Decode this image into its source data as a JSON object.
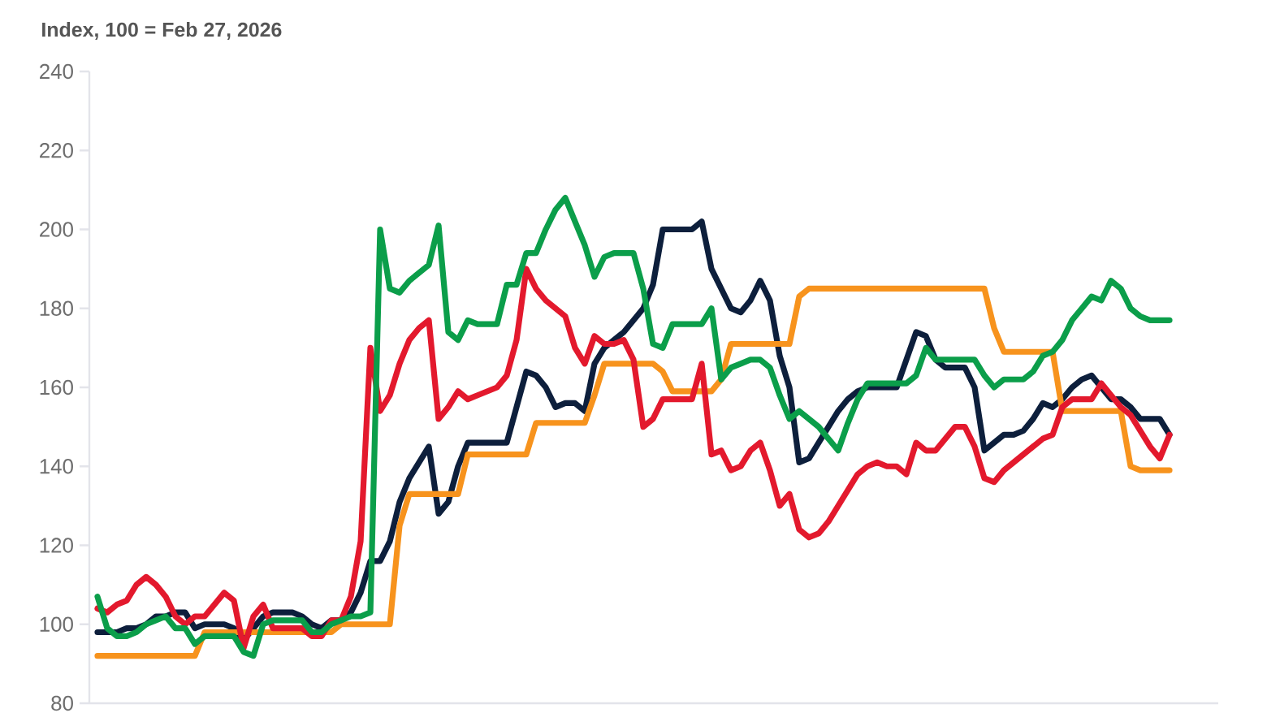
{
  "chart_data": {
    "type": "line",
    "title": "Index, 100 = Feb 27, 2026",
    "categories": [
      null,
      null,
      null,
      null,
      null,
      null,
      null,
      null,
      null,
      null,
      null,
      null,
      null,
      null,
      null,
      null,
      null,
      null,
      null,
      null,
      null,
      null,
      null,
      null,
      null,
      null,
      null,
      null,
      null,
      null,
      null,
      null,
      null,
      null,
      null,
      null,
      null,
      null,
      null,
      null,
      null,
      null,
      null,
      null,
      null,
      null,
      null,
      null,
      null,
      null,
      null,
      null,
      null,
      null,
      null,
      null,
      null,
      null,
      null,
      null,
      null,
      null,
      null,
      null,
      null,
      null,
      null,
      null,
      null,
      null,
      null,
      null,
      null,
      null,
      null,
      null,
      null,
      null,
      null,
      null,
      null,
      null,
      null,
      null,
      null,
      null,
      null,
      null,
      null,
      null,
      null,
      null,
      null,
      null,
      null,
      null,
      null,
      null,
      null,
      null,
      null,
      null,
      null,
      null,
      null,
      null,
      null,
      null,
      null,
      null,
      null
    ],
    "ylim": [
      80,
      240
    ],
    "yticks": [
      80,
      100,
      120,
      140,
      160,
      180,
      200,
      220,
      240
    ],
    "tick_labels": "y",
    "series": [
      {
        "color": "#0d1f3c",
        "values": [
          98,
          98,
          98,
          99,
          99,
          100,
          102,
          102,
          103,
          103,
          99,
          100,
          100,
          100,
          99,
          96,
          99,
          102,
          103,
          103,
          103,
          102,
          100,
          99,
          101,
          101,
          103,
          108,
          116,
          116,
          121,
          131,
          137,
          141,
          145,
          128,
          131,
          140,
          146,
          146,
          146,
          146,
          146,
          155,
          164,
          163,
          160,
          155,
          156,
          156,
          154,
          166,
          170,
          172,
          174,
          177,
          180,
          186,
          200,
          200,
          200,
          200,
          202,
          190,
          185,
          180,
          179,
          182,
          187,
          182,
          168,
          160,
          141,
          142,
          146,
          150,
          154,
          157,
          159,
          160,
          160,
          160,
          160,
          167,
          174,
          173,
          167,
          165,
          165,
          165,
          160,
          144,
          146,
          148,
          148,
          149,
          152,
          156,
          155,
          157,
          160,
          162,
          163,
          160,
          157,
          157,
          155,
          152,
          152,
          152,
          148
        ]
      },
      {
        "color": "#f7931d",
        "values": [
          92,
          92,
          92,
          92,
          92,
          92,
          92,
          92,
          92,
          92,
          92,
          98,
          98,
          98,
          98,
          98,
          98,
          98,
          98,
          98,
          98,
          98,
          98,
          98,
          98,
          100,
          100,
          100,
          100,
          100,
          100,
          125,
          133,
          133,
          133,
          133,
          133,
          133,
          143,
          143,
          143,
          143,
          143,
          143,
          143,
          151,
          151,
          151,
          151,
          151,
          151,
          158,
          166,
          166,
          166,
          166,
          166,
          166,
          164,
          159,
          159,
          159,
          159,
          159,
          162,
          171,
          171,
          171,
          171,
          171,
          171,
          171,
          183,
          185,
          185,
          185,
          185,
          185,
          185,
          185,
          185,
          185,
          185,
          185,
          185,
          185,
          185,
          185,
          185,
          185,
          185,
          185,
          175,
          169,
          169,
          169,
          169,
          169,
          169,
          154,
          154,
          154,
          154,
          154,
          154,
          154,
          140,
          139,
          139,
          139,
          139
        ]
      },
      {
        "color": "#e3192d",
        "values": [
          104,
          103,
          105,
          106,
          110,
          112,
          110,
          107,
          102,
          100,
          102,
          102,
          105,
          108,
          106,
          94,
          102,
          105,
          99,
          99,
          99,
          99,
          97,
          97,
          101,
          101,
          107,
          121,
          170,
          154,
          158,
          166,
          172,
          175,
          177,
          152,
          155,
          159,
          157,
          158,
          159,
          160,
          163,
          172,
          190,
          185,
          182,
          180,
          178,
          170,
          166,
          173,
          171,
          171,
          172,
          167,
          150,
          152,
          157,
          157,
          157,
          157,
          166,
          143,
          144,
          139,
          140,
          144,
          146,
          139,
          130,
          133,
          124,
          122,
          123,
          126,
          130,
          134,
          138,
          140,
          141,
          140,
          140,
          138,
          146,
          144,
          144,
          147,
          150,
          150,
          145,
          137,
          136,
          139,
          141,
          143,
          145,
          147,
          148,
          155,
          157,
          157,
          157,
          161,
          158,
          155,
          153,
          149,
          145,
          142,
          148
        ]
      },
      {
        "color": "#0b9e4a",
        "values": [
          107,
          99,
          97,
          97,
          98,
          100,
          101,
          102,
          99,
          99,
          95,
          97,
          97,
          97,
          97,
          93,
          92,
          100,
          101,
          101,
          101,
          101,
          98,
          98,
          100,
          101,
          102,
          102,
          103,
          200,
          185,
          184,
          187,
          189,
          191,
          201,
          174,
          172,
          177,
          176,
          176,
          176,
          186,
          186,
          194,
          194,
          200,
          205,
          208,
          202,
          196,
          188,
          193,
          194,
          194,
          194,
          185,
          171,
          170,
          176,
          176,
          176,
          176,
          180,
          162,
          165,
          166,
          167,
          167,
          165,
          158,
          152,
          154,
          152,
          150,
          147,
          144,
          151,
          157,
          161,
          161,
          161,
          161,
          161,
          163,
          170,
          167,
          167,
          167,
          167,
          167,
          163,
          160,
          162,
          162,
          162,
          164,
          168,
          169,
          172,
          177,
          180,
          183,
          182,
          187,
          185,
          180,
          178,
          177,
          177,
          177
        ]
      }
    ]
  }
}
